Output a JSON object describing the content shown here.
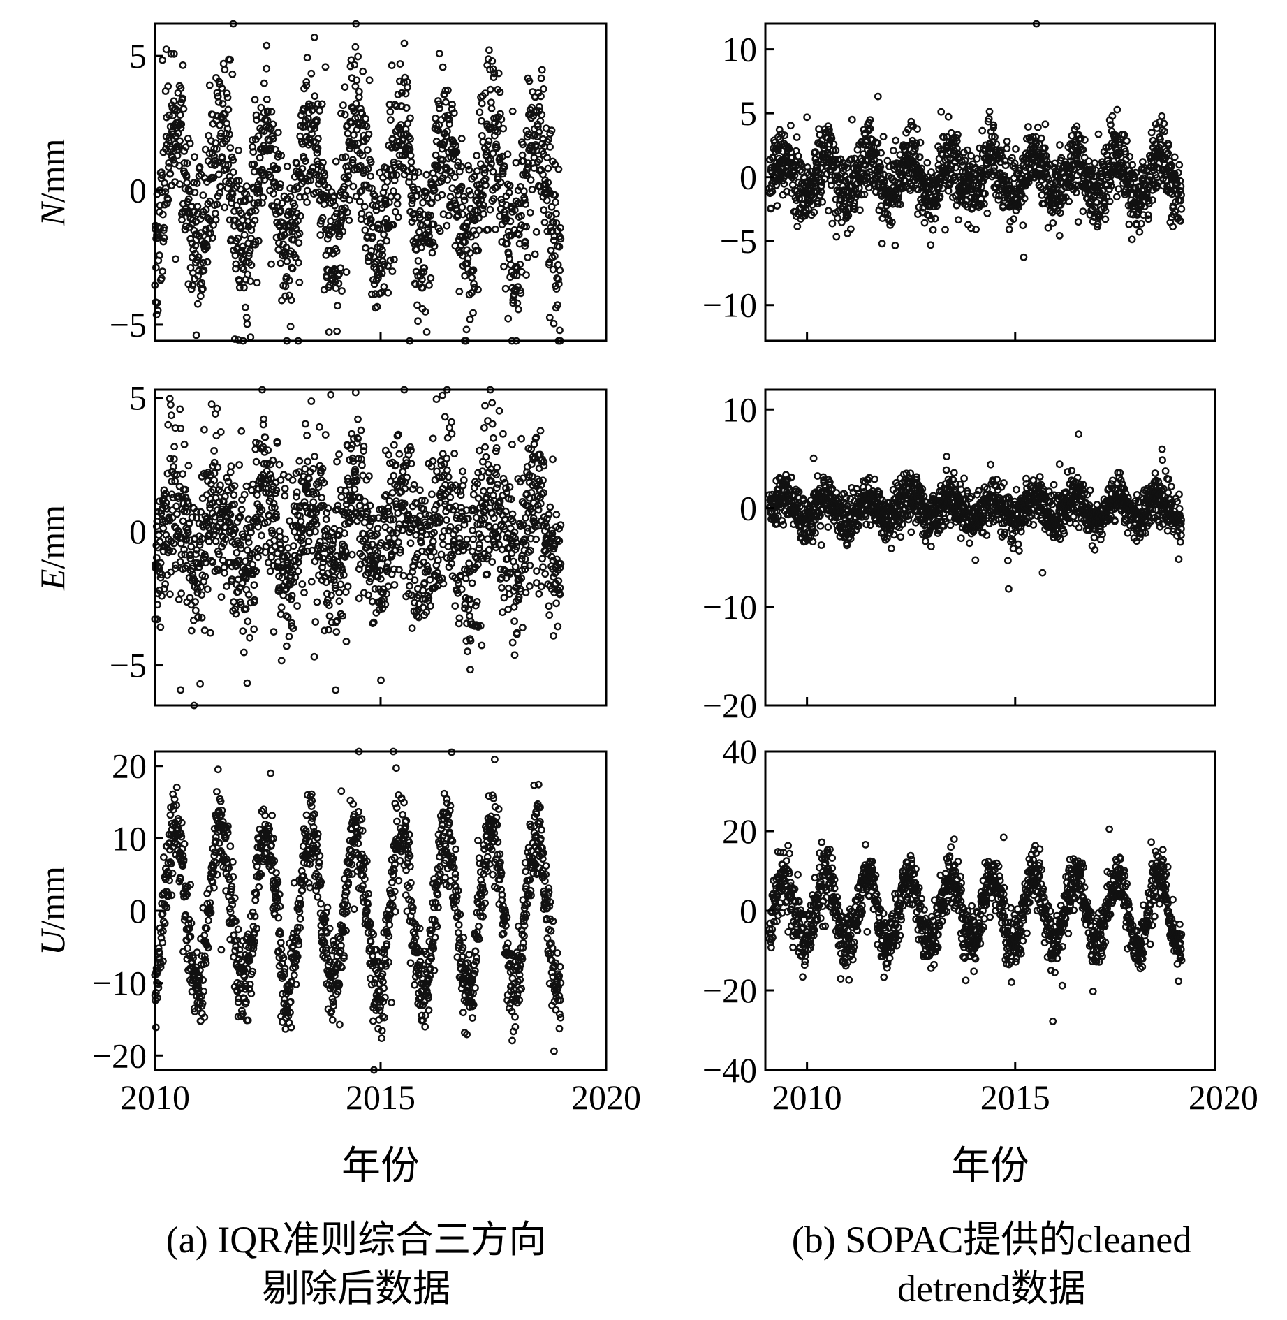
{
  "chart_data": [
    {
      "id": "a-n",
      "type": "scatter",
      "ylabel_var": "N",
      "ylabel_unit": "/mm",
      "xlim": [
        2010,
        2020
      ],
      "ylim": [
        -5.6,
        6.2
      ],
      "yticks": [
        5,
        0,
        -5
      ],
      "xticks": [],
      "yamp": 2.2,
      "noise": 1.5,
      "seed": 11
    },
    {
      "id": "a-e",
      "type": "scatter",
      "ylabel_var": "E",
      "ylabel_unit": "/mm",
      "xlim": [
        2010,
        2020
      ],
      "ylim": [
        -6.5,
        5.3
      ],
      "yticks": [
        5,
        0,
        -5
      ],
      "xticks": [],
      "yamp": 1.4,
      "noise": 1.5,
      "seed": 23
    },
    {
      "id": "a-u",
      "type": "scatter",
      "ylabel_var": "U",
      "ylabel_unit": "/mm",
      "xlim": [
        2010,
        2020
      ],
      "ylim": [
        -22,
        22
      ],
      "yticks": [
        20,
        10,
        0,
        -10,
        -20
      ],
      "xticks": [
        2010,
        2015,
        2020
      ],
      "yamp": 11,
      "noise": 3,
      "seed": 37
    },
    {
      "id": "b-n",
      "type": "scatter",
      "ylabel_var": "",
      "ylabel_unit": "",
      "xlim": [
        2009,
        2019.8
      ],
      "ylim": [
        -12.8,
        12
      ],
      "yticks": [
        10,
        5,
        0,
        -5,
        -10
      ],
      "xticks": [],
      "yamp": 1.6,
      "noise": 1.4,
      "seed": 41
    },
    {
      "id": "b-e",
      "type": "scatter",
      "ylabel_var": "",
      "ylabel_unit": "",
      "xlim": [
        2009,
        2019.8
      ],
      "ylim": [
        -20,
        12
      ],
      "yticks": [
        10,
        0,
        -10,
        -20
      ],
      "xticks": [],
      "yamp": 1.2,
      "noise": 1.2,
      "seed": 53
    },
    {
      "id": "b-u",
      "type": "scatter",
      "ylabel_var": "",
      "ylabel_unit": "",
      "xlim": [
        2009,
        2019.8
      ],
      "ylim": [
        -40,
        40
      ],
      "yticks": [
        40,
        20,
        0,
        -20,
        -40
      ],
      "xticks": [
        2010,
        2015,
        2020
      ],
      "yamp": 9,
      "noise": 3.5,
      "seed": 67
    }
  ],
  "xaxis": {
    "title": "年份"
  },
  "captions": {
    "a_line1": "(a) IQR准则综合三方向",
    "a_line2": "剔除后数据",
    "b_line1": "(b) SOPAC提供的cleaned",
    "b_line2": "detrend数据"
  }
}
